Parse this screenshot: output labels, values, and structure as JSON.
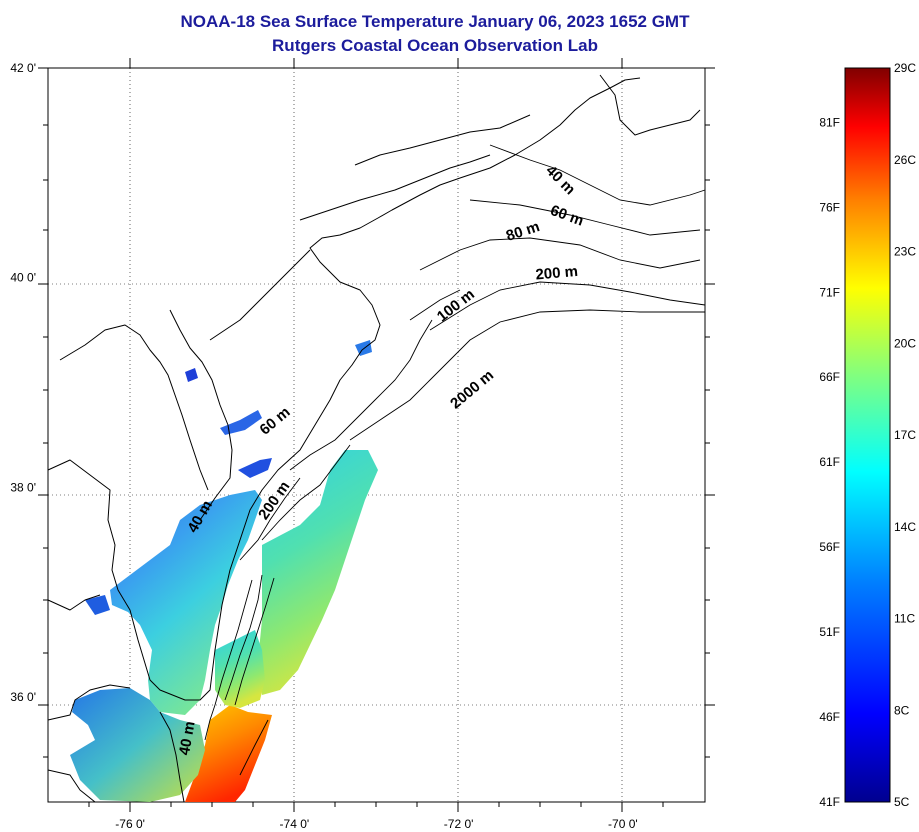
{
  "title": "NOAA-18 Sea Surface Temperature January 06, 2023 1652 GMT",
  "subtitle": "Rutgers Coastal Ocean Observation Lab",
  "map": {
    "lat_labels": [
      {
        "value": 42,
        "label": "42 0'"
      },
      {
        "value": 40,
        "label": "40 0'"
      },
      {
        "value": 38,
        "label": "38 0'"
      },
      {
        "value": 36,
        "label": "36 0'"
      }
    ],
    "lon_labels": [
      {
        "value": -76,
        "label": "-76 0'"
      },
      {
        "value": -74,
        "label": "-74 0'"
      },
      {
        "value": -72,
        "label": "-72 0'"
      },
      {
        "value": -70,
        "label": "-70 0'"
      }
    ],
    "lon_range": [
      -77,
      -69
    ],
    "lat_range": [
      35,
      42
    ],
    "grid": "dotted",
    "depth_labels": [
      {
        "text": "40 m",
        "lon": -70.8,
        "lat": 40.9,
        "angle": 45
      },
      {
        "text": "60 m",
        "lon": -70.7,
        "lat": 40.55,
        "angle": 20
      },
      {
        "text": "80 m",
        "lon": -71.2,
        "lat": 40.4,
        "angle": -18
      },
      {
        "text": "200 m",
        "lon": -70.8,
        "lat": 40.0,
        "angle": -5
      },
      {
        "text": "100 m",
        "lon": -72.0,
        "lat": 39.7,
        "angle": -38
      },
      {
        "text": "2000 m",
        "lon": -71.8,
        "lat": 38.9,
        "angle": -40
      },
      {
        "text": "60 m",
        "lon": -74.2,
        "lat": 38.6,
        "angle": -40
      },
      {
        "text": "200 m",
        "lon": -74.2,
        "lat": 37.85,
        "angle": -55
      },
      {
        "text": "40 m",
        "lon": -75.1,
        "lat": 37.7,
        "angle": -60
      },
      {
        "text": "40 m",
        "lon": -75.25,
        "lat": 35.6,
        "angle": -80
      }
    ]
  },
  "colorbar": {
    "celsius_labels": [
      {
        "value": 29,
        "label": "29C"
      },
      {
        "value": 26,
        "label": "26C"
      },
      {
        "value": 23,
        "label": "23C"
      },
      {
        "value": 20,
        "label": "20C"
      },
      {
        "value": 17,
        "label": "17C"
      },
      {
        "value": 14,
        "label": "14C"
      },
      {
        "value": 11,
        "label": "11C"
      },
      {
        "value": 8,
        "label": "8C"
      },
      {
        "value": 5,
        "label": "5C"
      }
    ],
    "fahrenheit_labels": [
      {
        "value": 81,
        "label": "81F"
      },
      {
        "value": 76,
        "label": "76F"
      },
      {
        "value": 71,
        "label": "71F"
      },
      {
        "value": 66,
        "label": "66F"
      },
      {
        "value": 61,
        "label": "61F"
      },
      {
        "value": 56,
        "label": "56F"
      },
      {
        "value": 51,
        "label": "51F"
      },
      {
        "value": 46,
        "label": "46F"
      },
      {
        "value": 41,
        "label": "41F"
      }
    ],
    "range_c": [
      5,
      29
    ],
    "colors": [
      "#00008f",
      "#0000ff",
      "#0080ff",
      "#00ffff",
      "#80ff80",
      "#ffff00",
      "#ff8000",
      "#ff0000",
      "#800000"
    ]
  }
}
